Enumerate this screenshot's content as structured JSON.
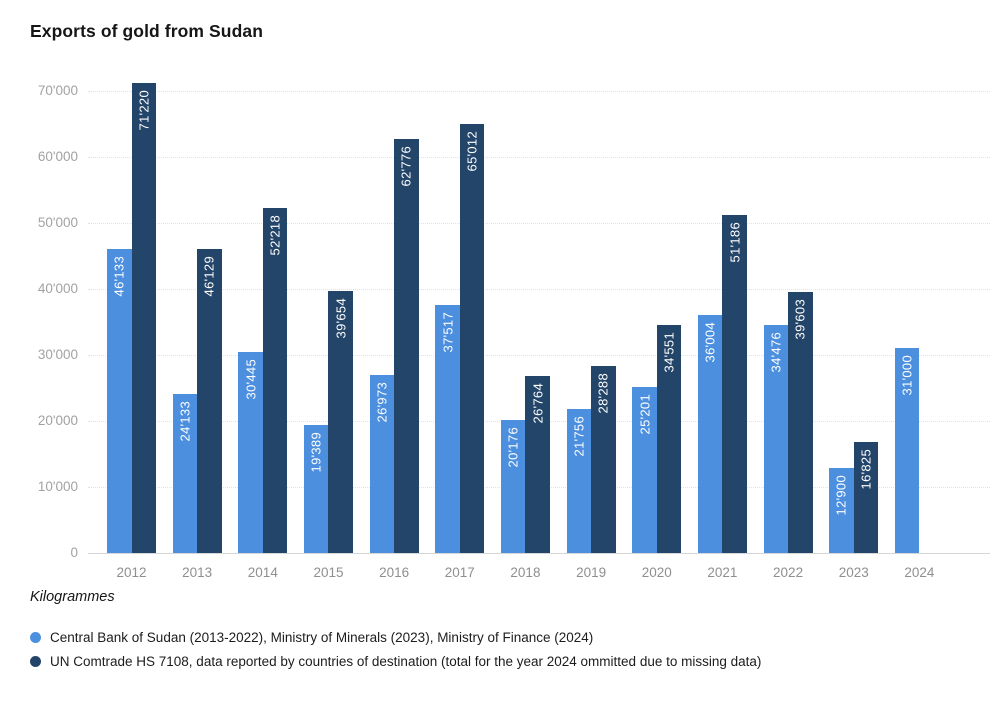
{
  "title": "Exports of gold from Sudan",
  "unit_label": "Kilogrammes",
  "colors": {
    "series_light_blue": "#4b8fde",
    "series_dark_navy": "#24456a",
    "gridline": "#e2e2e2",
    "axis_line": "#d6d6d6",
    "y_tick_text": "#a2a2a2",
    "x_tick_text": "#8f8f8f",
    "bar_label_text": "#ffffff",
    "title_text": "#161616"
  },
  "legend": [
    {
      "label": "Central Bank of Sudan (2013-2022), Ministry of Minerals (2023), Ministry of Finance (2024)",
      "color": "#4b8fde"
    },
    {
      "label": "UN Comtrade HS 7108, data reported by countries of destination (total for the year 2024 ommitted due to missing data)",
      "color": "#24456a"
    }
  ],
  "chart_data": {
    "type": "bar",
    "title": "Exports of gold from Sudan",
    "ylabel": "Kilogrammes",
    "categories": [
      "2012",
      "2013",
      "2014",
      "2015",
      "2016",
      "2017",
      "2018",
      "2019",
      "2020",
      "2021",
      "2022",
      "2023",
      "2024"
    ],
    "series": [
      {
        "name": "Central Bank of Sudan (2013-2022), Ministry of Minerals (2023), Ministry of Finance (2024)",
        "color": "#4b8fde",
        "values": [
          46133,
          24133,
          30445,
          19389,
          26973,
          37517,
          20176,
          21756,
          25201,
          36004,
          34476,
          12900,
          31000
        ],
        "labels": [
          "46'133",
          "24'133",
          "30'445",
          "19'389",
          "26'973",
          "37'517",
          "20'176",
          "21'756",
          "25'201",
          "36'004",
          "34'476",
          "12'900",
          "31'000"
        ]
      },
      {
        "name": "UN Comtrade HS 7108, data reported by countries of destination (total for the year 2024 ommitted due to missing data)",
        "color": "#24456a",
        "values": [
          71220,
          46129,
          52218,
          39654,
          62776,
          65012,
          26764,
          28288,
          34551,
          51186,
          39603,
          16825,
          null
        ],
        "labels": [
          "71'220",
          "46'129",
          "52'218",
          "39'654",
          "62'776",
          "65'012",
          "26'764",
          "28'288",
          "34'551",
          "51'186",
          "39'603",
          "16'825",
          null
        ]
      }
    ],
    "ylim": [
      0,
      70000
    ],
    "ytick_interval": 10000,
    "ytick_labels": [
      "0",
      "10'000",
      "20'000",
      "30'000",
      "40'000",
      "50'000",
      "60'000",
      "70'000"
    ],
    "grid": true,
    "gridline_style": "dotted",
    "legend_position": "bottom",
    "bar_value_labels": "rotated-90-inside-top"
  }
}
